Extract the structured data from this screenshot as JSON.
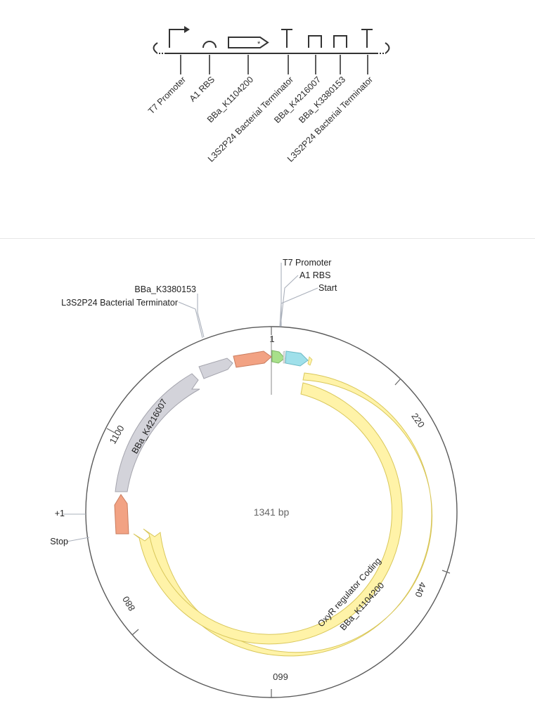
{
  "sbol": {
    "parts": [
      {
        "type": "promoter",
        "label": "T7 Promoter"
      },
      {
        "type": "rbs",
        "label": "A1 RBS"
      },
      {
        "type": "cds",
        "label": "BBa_K1104200"
      },
      {
        "type": "terminator",
        "label": "L3S2P24 Bacterial Terminator"
      },
      {
        "type": "spacer",
        "label": "BBa_K4216007"
      },
      {
        "type": "spacer",
        "label": "BBa_K3380153"
      },
      {
        "type": "terminator",
        "label": "L3S2P24 Bacterial Terminator"
      }
    ]
  },
  "plasmid": {
    "length_label": "1341 bp",
    "length": 1341,
    "ticks": [
      {
        "pos": 1,
        "label": "1"
      },
      {
        "pos": 220,
        "label": "220"
      },
      {
        "pos": 440,
        "label": "440"
      },
      {
        "pos": 660,
        "label": "660"
      },
      {
        "pos": 880,
        "label": "880"
      },
      {
        "pos": 1100,
        "label": "1100"
      }
    ],
    "annotations": [
      {
        "name": "T7 Promoter",
        "color": "#a8e08a"
      },
      {
        "name": "A1 RBS",
        "color": "#e8e8ec"
      },
      {
        "name": "Start",
        "color": "#9fe0ea"
      },
      {
        "name": "BBa_K3380153",
        "color": "#d3d3da"
      },
      {
        "name": "L3S2P24 Bacterial Terminator",
        "color": "#f2a283"
      },
      {
        "name": "+1",
        "color": "#f2a283"
      },
      {
        "name": "Stop",
        "color": "#fff3a8"
      }
    ],
    "features": [
      {
        "name": "BBa_K4216007",
        "color": "#d3d3da"
      },
      {
        "name": "OxyR regulator Coding",
        "color": "#fff3a8"
      },
      {
        "name": "BBa_K1104200",
        "color": "#fff3a8"
      }
    ]
  }
}
